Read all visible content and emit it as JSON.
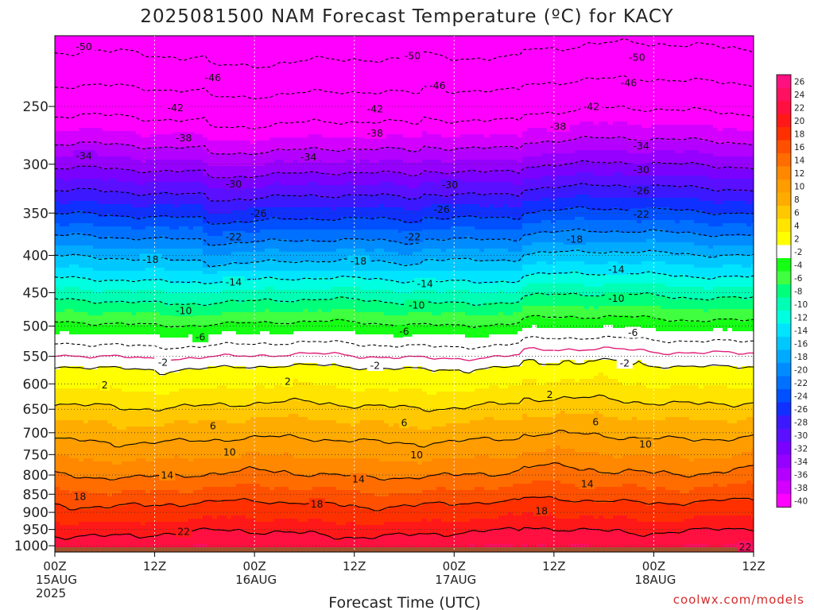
{
  "credit": "coolwx.com/models",
  "chart_data": {
    "type": "heatmap",
    "title": "2025081500 NAM Forecast Temperature (ºC) for KACY",
    "xlabel": "Forecast Time (UTC)",
    "ylabel": "",
    "y_scale": "log",
    "y_inverted": true,
    "y_range": [
      200,
      1020
    ],
    "y_ticks": [
      250,
      300,
      350,
      400,
      450,
      500,
      550,
      600,
      650,
      700,
      750,
      800,
      850,
      900,
      950,
      1000
    ],
    "x_range_hours": [
      0,
      84
    ],
    "x_ticks": [
      {
        "hour": 0,
        "lines": [
          "00Z",
          "15AUG",
          "2025"
        ]
      },
      {
        "hour": 12,
        "lines": [
          "12Z"
        ]
      },
      {
        "hour": 24,
        "lines": [
          "00Z",
          "16AUG"
        ]
      },
      {
        "hour": 36,
        "lines": [
          "12Z"
        ]
      },
      {
        "hour": 48,
        "lines": [
          "00Z",
          "17AUG"
        ]
      },
      {
        "hour": 60,
        "lines": [
          "12Z"
        ]
      },
      {
        "hour": 72,
        "lines": [
          "00Z",
          "18AUG"
        ]
      },
      {
        "hour": 84,
        "lines": [
          "12Z"
        ]
      }
    ],
    "grid": true,
    "colorbar": {
      "placement": "right",
      "levels": [
        26,
        24,
        22,
        20,
        18,
        16,
        14,
        12,
        10,
        8,
        6,
        4,
        2,
        -2,
        -4,
        -6,
        -8,
        -10,
        -12,
        -14,
        -16,
        -18,
        -20,
        -22,
        -24,
        -26,
        -28,
        -30,
        -32,
        -34,
        -36,
        -38,
        -40
      ],
      "colors": {
        "26": "#ff1080",
        "24": "#ff1060",
        "22": "#ff1040",
        "20": "#ff1818",
        "18": "#ff3000",
        "16": "#ff5000",
        "14": "#ff6c00",
        "12": "#ff8800",
        "10": "#ff9c00",
        "8": "#ffac00",
        "6": "#ffc800",
        "4": "#ffe400",
        "2": "#ffff00",
        "-2": "#ffffff",
        "-4": "#14ff14",
        "-6": "#40ff40",
        "-8": "#00ff7a",
        "-10": "#00ffb4",
        "-12": "#00ffe0",
        "-14": "#00e4ff",
        "-16": "#00c8ff",
        "-18": "#00aaff",
        "-20": "#008cff",
        "-22": "#0070ff",
        "-24": "#0050ff",
        "-26": "#1030ff",
        "-28": "#3c18ff",
        "-30": "#5a10ff",
        "-32": "#7a00ff",
        "-34": "#9600ff",
        "-36": "#b400ff",
        "-38": "#d400ff",
        "-40": "#ff00ff"
      }
    },
    "ground_color": "#a0522d",
    "pressure_levels": [
      200,
      225,
      250,
      275,
      300,
      325,
      350,
      375,
      400,
      425,
      450,
      475,
      500,
      525,
      550,
      575,
      600,
      625,
      650,
      675,
      700,
      725,
      750,
      775,
      800,
      825,
      850,
      875,
      900,
      925,
      950,
      975,
      1000
    ],
    "temperature_profile_C": [
      -52,
      -48,
      -43.5,
      -39.5,
      -35,
      -30.5,
      -26.5,
      -22.5,
      -18.5,
      -15,
      -11.5,
      -8.5,
      -5.5,
      -2.5,
      0,
      2.5,
      3.5,
      5,
      6.5,
      8,
      9,
      10.5,
      11.5,
      13,
      14,
      15.5,
      16.5,
      18,
      19,
      20,
      21.5,
      22.5,
      23.5
    ],
    "contour_labels": [
      {
        "value": "-50",
        "x_hour": 3.5,
        "p": 207
      },
      {
        "value": "-50",
        "x_hour": 43,
        "p": 213
      },
      {
        "value": "-50",
        "x_hour": 70,
        "p": 214
      },
      {
        "value": "-46",
        "x_hour": 19,
        "p": 228
      },
      {
        "value": "-46",
        "x_hour": 46,
        "p": 234
      },
      {
        "value": "-46",
        "x_hour": 69,
        "p": 232
      },
      {
        "value": "-42",
        "x_hour": 14.5,
        "p": 251
      },
      {
        "value": "-42",
        "x_hour": 38.5,
        "p": 252
      },
      {
        "value": "-42",
        "x_hour": 64.5,
        "p": 250
      },
      {
        "value": "-38",
        "x_hour": 15.5,
        "p": 276
      },
      {
        "value": "-38",
        "x_hour": 38.5,
        "p": 272
      },
      {
        "value": "-38",
        "x_hour": 60.5,
        "p": 266
      },
      {
        "value": "-34",
        "x_hour": 3.5,
        "p": 292
      },
      {
        "value": "-34",
        "x_hour": 30.5,
        "p": 293
      },
      {
        "value": "-34",
        "x_hour": 70.5,
        "p": 283
      },
      {
        "value": "-30",
        "x_hour": 21.5,
        "p": 319
      },
      {
        "value": "-30",
        "x_hour": 47.5,
        "p": 320
      },
      {
        "value": "-30",
        "x_hour": 70.5,
        "p": 305
      },
      {
        "value": "-26",
        "x_hour": 24.5,
        "p": 350
      },
      {
        "value": "-26",
        "x_hour": 46.5,
        "p": 346
      },
      {
        "value": "-26",
        "x_hour": 70.5,
        "p": 326
      },
      {
        "value": "-22",
        "x_hour": 21.5,
        "p": 377
      },
      {
        "value": "-22",
        "x_hour": 43,
        "p": 377
      },
      {
        "value": "-22",
        "x_hour": 70.5,
        "p": 351
      },
      {
        "value": "-18",
        "x_hour": 11.5,
        "p": 405
      },
      {
        "value": "-18",
        "x_hour": 36.5,
        "p": 407
      },
      {
        "value": "-18",
        "x_hour": 62.5,
        "p": 380
      },
      {
        "value": "-14",
        "x_hour": 21.5,
        "p": 435
      },
      {
        "value": "-14",
        "x_hour": 44.5,
        "p": 437
      },
      {
        "value": "-14",
        "x_hour": 67.5,
        "p": 418
      },
      {
        "value": "-10",
        "x_hour": 15.5,
        "p": 476
      },
      {
        "value": "-10",
        "x_hour": 43.5,
        "p": 468
      },
      {
        "value": "-10",
        "x_hour": 67.5,
        "p": 458
      },
      {
        "value": "-6",
        "x_hour": 17.5,
        "p": 517
      },
      {
        "value": "-6",
        "x_hour": 42,
        "p": 508
      },
      {
        "value": "-6",
        "x_hour": 69.5,
        "p": 510
      },
      {
        "value": "-2",
        "x_hour": 13,
        "p": 560
      },
      {
        "value": "-2",
        "x_hour": 38.5,
        "p": 566
      },
      {
        "value": "-2",
        "x_hour": 68.5,
        "p": 562
      },
      {
        "value": "2",
        "x_hour": 6,
        "p": 602
      },
      {
        "value": "2",
        "x_hour": 28,
        "p": 595
      },
      {
        "value": "2",
        "x_hour": 59.5,
        "p": 620
      },
      {
        "value": "6",
        "x_hour": 19,
        "p": 685
      },
      {
        "value": "6",
        "x_hour": 42,
        "p": 678
      },
      {
        "value": "6",
        "x_hour": 65,
        "p": 676
      },
      {
        "value": "10",
        "x_hour": 21,
        "p": 744
      },
      {
        "value": "10",
        "x_hour": 43.5,
        "p": 750
      },
      {
        "value": "10",
        "x_hour": 71,
        "p": 725
      },
      {
        "value": "14",
        "x_hour": 13.5,
        "p": 800
      },
      {
        "value": "14",
        "x_hour": 36.5,
        "p": 810
      },
      {
        "value": "14",
        "x_hour": 64,
        "p": 822
      },
      {
        "value": "18",
        "x_hour": 3,
        "p": 856
      },
      {
        "value": "18",
        "x_hour": 31.5,
        "p": 876
      },
      {
        "value": "18",
        "x_hour": 58.5,
        "p": 895
      },
      {
        "value": "22",
        "x_hour": 15.5,
        "p": 956
      },
      {
        "value": "22",
        "x_hour": 83,
        "p": 1003
      }
    ]
  }
}
